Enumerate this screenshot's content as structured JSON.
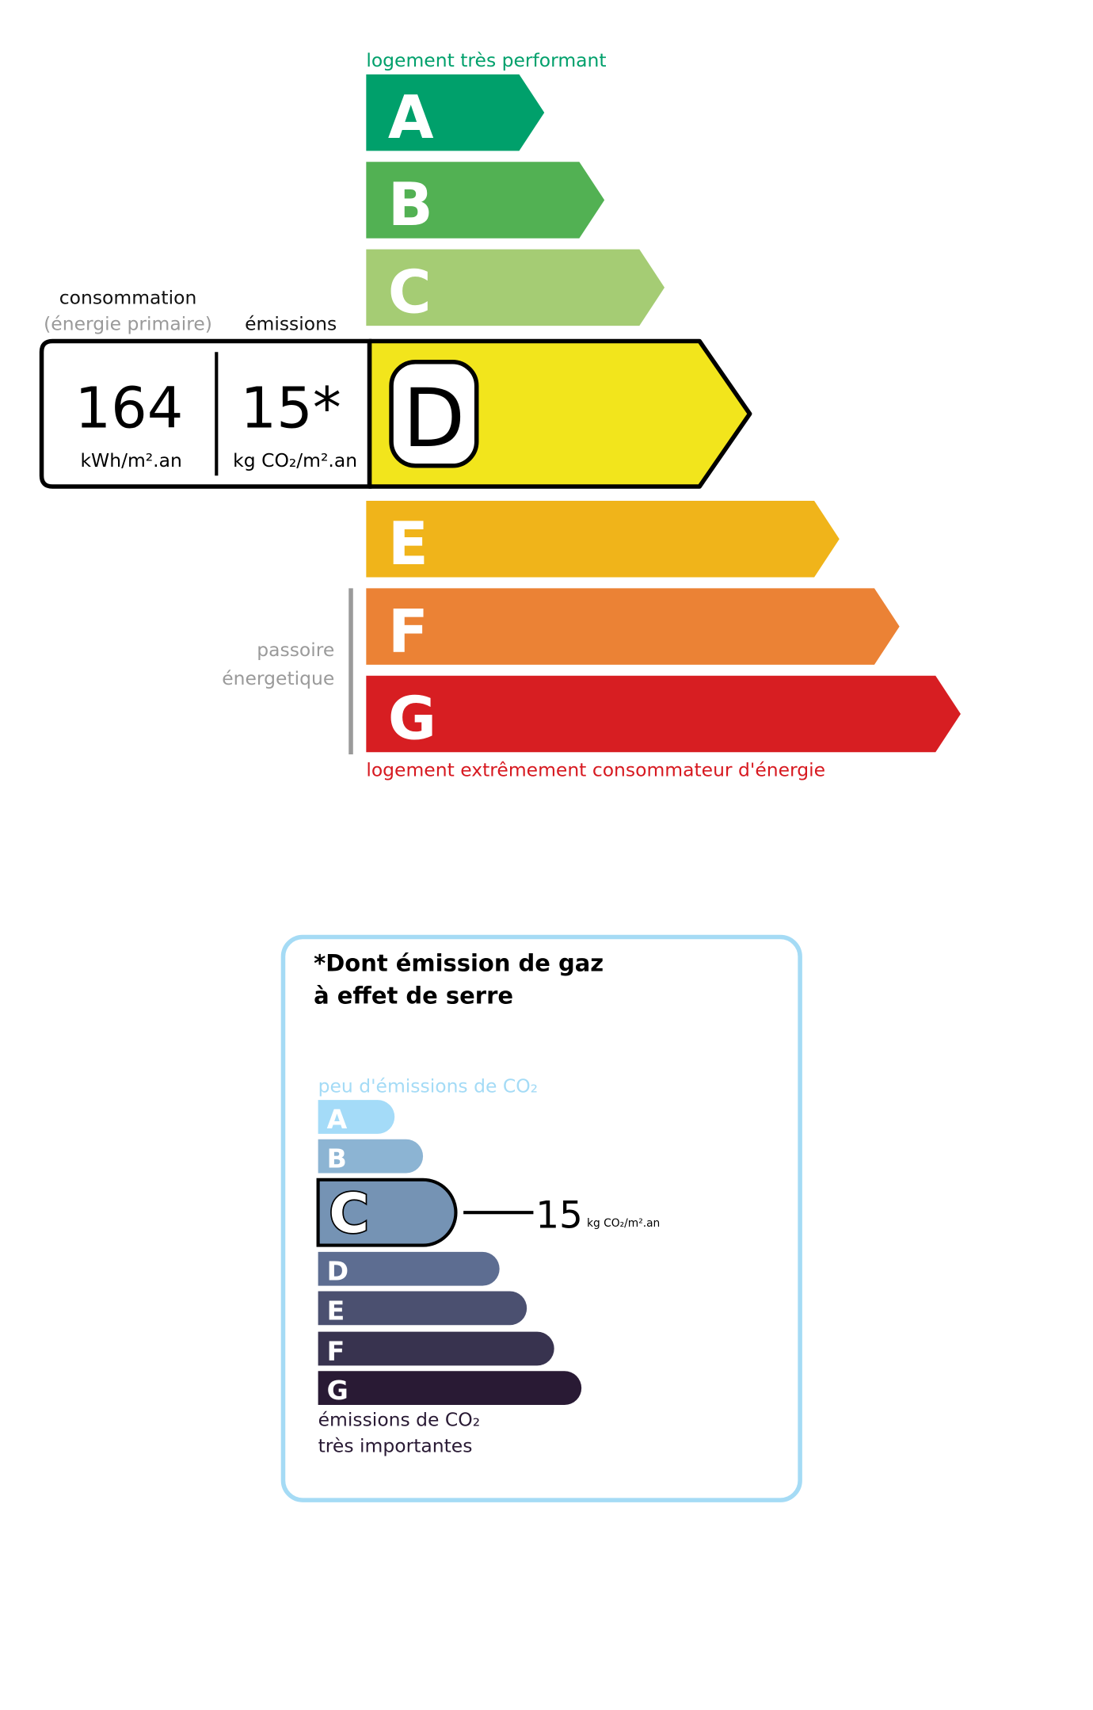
{
  "energy": {
    "top_label": "logement très performant",
    "bottom_label": "logement extrêmement consommateur d'énergie",
    "classes": [
      {
        "letter": "A",
        "color": "#00a06b"
      },
      {
        "letter": "B",
        "color": "#52b153"
      },
      {
        "letter": "C",
        "color": "#a5cc74"
      },
      {
        "letter": "D",
        "color": "#f2e51c"
      },
      {
        "letter": "E",
        "color": "#f0b41a"
      },
      {
        "letter": "F",
        "color": "#eb8235"
      },
      {
        "letter": "G",
        "color": "#d71e22"
      }
    ],
    "current_class": "D",
    "consumption_label": "consommation",
    "consumption_sublabel": "(énergie primaire)",
    "emissions_label": "émissions",
    "consumption_value": "164",
    "consumption_unit": "kWh/m².an",
    "emissions_value": "15*",
    "emissions_unit": "kg CO₂/m².an",
    "passoire_line1": "passoire",
    "passoire_line2": "énergetique",
    "top_color": "#00a06b",
    "bottom_color": "#d71920"
  },
  "ges": {
    "title_line1": "*Dont émission de gaz",
    "title_line2": "à effet de serre",
    "top_label": "peu d'émissions de CO₂",
    "bottom_line1": "émissions de CO₂",
    "bottom_line2": "très importantes",
    "classes": [
      {
        "letter": "A",
        "color": "#a4dbf8"
      },
      {
        "letter": "B",
        "color": "#8cb4d3"
      },
      {
        "letter": "C",
        "color": "#7593b4"
      },
      {
        "letter": "D",
        "color": "#5d6d91"
      },
      {
        "letter": "E",
        "color": "#4b5070"
      },
      {
        "letter": "F",
        "color": "#38334f"
      },
      {
        "letter": "G",
        "color": "#291a34"
      }
    ],
    "current_class": "C",
    "value": "15",
    "unit": "kg CO₂/m².an",
    "border_color": "#a5dbf5"
  }
}
